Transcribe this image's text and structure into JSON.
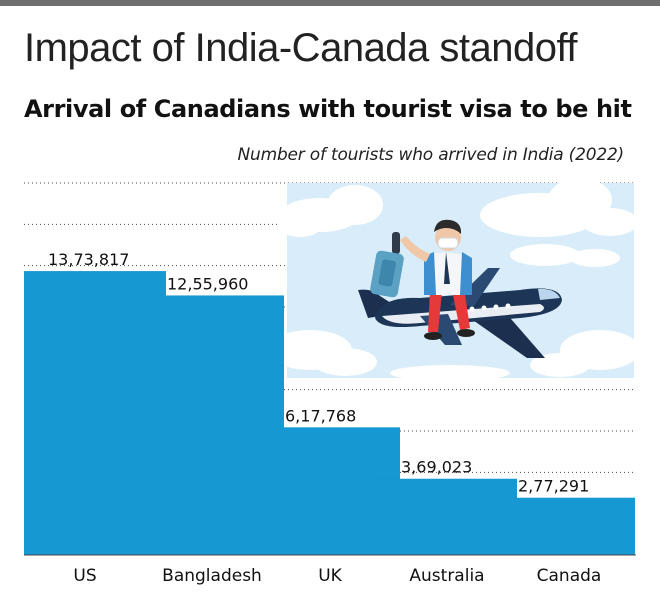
{
  "header": {
    "title": "Impact of India-Canada standoff",
    "subtitle": "Arrival of Canadians with tourist visa to be hit",
    "note": "Number of tourists who arrived in India (2022)"
  },
  "colors": {
    "bar": "#1699d2",
    "bar_shadow": "#0f7cb0",
    "grid": "#4a4a4a",
    "baseline": "#444444",
    "sky": "#d8edf9"
  },
  "illustration": {
    "icons": [
      "cloud-icon",
      "airplane-icon",
      "traveler-icon",
      "suitcase-icon"
    ]
  },
  "chart_data": {
    "type": "bar",
    "categories": [
      "US",
      "Bangladesh",
      "UK",
      "Australia",
      "Canada"
    ],
    "values": [
      1373817,
      1255960,
      617768,
      369023,
      277291
    ],
    "value_labels": [
      "13,73,817",
      "12,55,960",
      "6,17,768",
      "3,69,023",
      "2,77,291"
    ],
    "title": "Arrival of Canadians with tourist visa to be hit",
    "subtitle": "Number of tourists who arrived in India (2022)",
    "xlabel": "",
    "ylabel": "",
    "ylim": [
      0,
      1800000
    ],
    "grid": true,
    "legend": "none"
  }
}
